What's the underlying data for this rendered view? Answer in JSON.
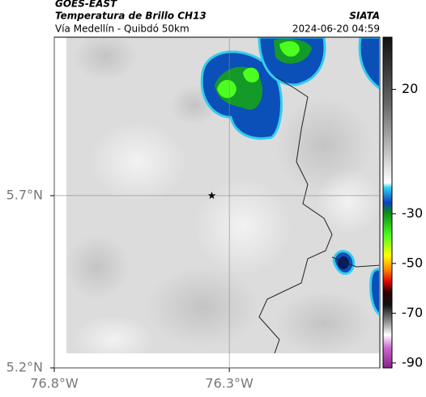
{
  "header": {
    "source": "GOES-EAST",
    "title": "Temperatura de Brillo CH13",
    "subtitle": "Vía Medellín - Quibdó 50km",
    "credit": "SIATA",
    "timestamp": "2024-06-20 04:59"
  },
  "map": {
    "lonlim": [
      -76.8,
      -75.87
    ],
    "latlim": [
      5.2,
      6.16
    ],
    "lonticks": [
      {
        "value": -76.8,
        "label": "76.8°W"
      },
      {
        "value": -76.3,
        "label": "76.3°W"
      }
    ],
    "latticks": [
      {
        "value": 5.2,
        "label": "5.2°N"
      },
      {
        "value": 5.7,
        "label": "5.7°N"
      }
    ],
    "grid": true,
    "marker": {
      "lon": -76.35,
      "lat": 5.7
    }
  },
  "colorbar": {
    "lim": [
      -92,
      41
    ],
    "ticks": [
      20,
      -30,
      -50,
      -70,
      -90
    ]
  }
}
